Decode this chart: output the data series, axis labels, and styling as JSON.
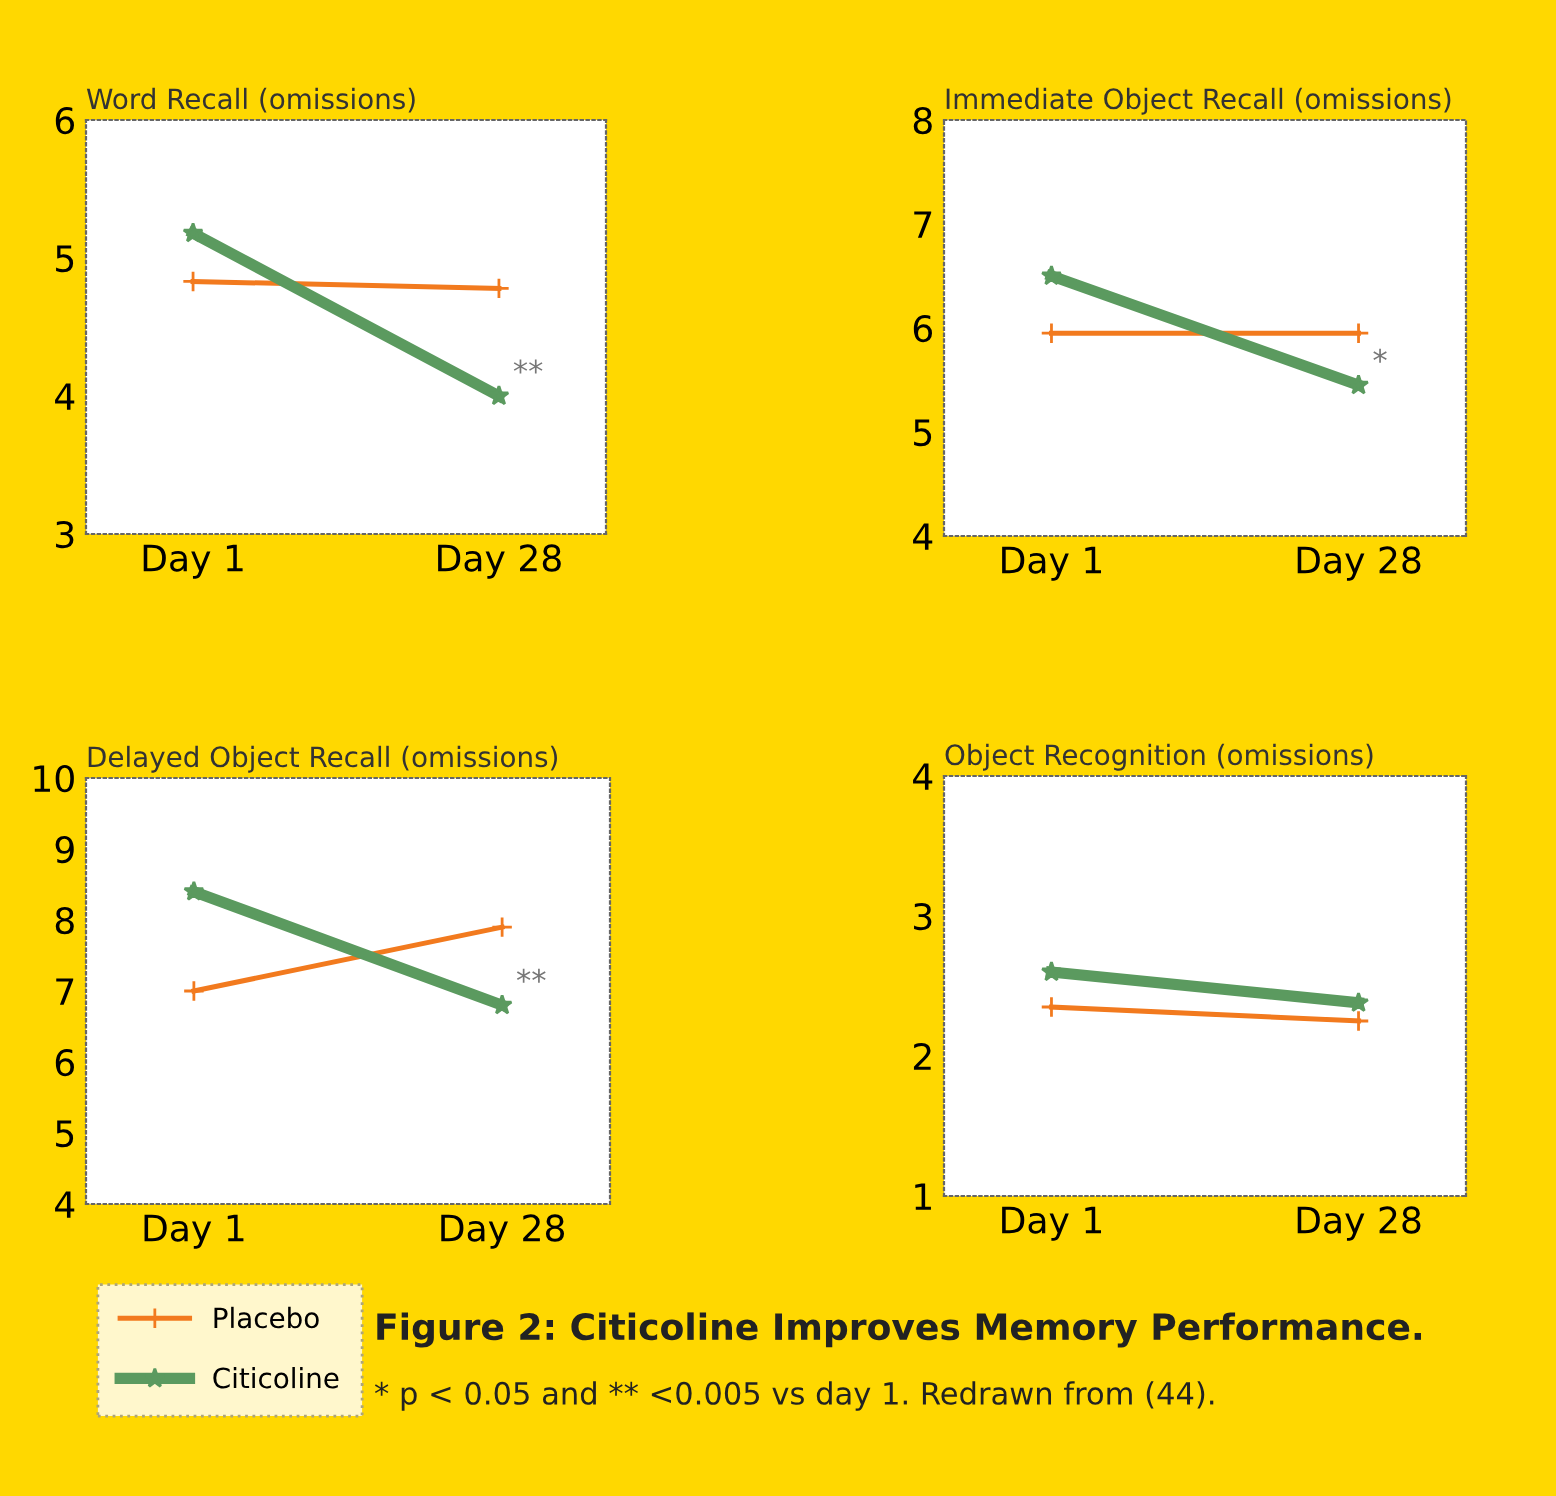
{
  "chart_data": [
    {
      "type": "line",
      "title": "Word Recall (omissions)",
      "categories": [
        "Day 1",
        "Day 28"
      ],
      "ylim": [
        3,
        6
      ],
      "yticks": [
        3,
        4,
        5,
        6
      ],
      "grid": false,
      "legend": false,
      "series": [
        {
          "color": "#f27a1e",
          "values": [
            4.83,
            4.78
          ],
          "marker": "cross"
        },
        {
          "color": "#5b9a5f",
          "values": [
            5.18,
            4.0
          ],
          "marker": "star"
        }
      ],
      "annotations": [
        {
          "text": "**",
          "x": "Day 28",
          "y": 4.0
        }
      ]
    },
    {
      "type": "line",
      "title": "Immediate Object Recall (omissions)",
      "categories": [
        "Day 1",
        "Day 28"
      ],
      "ylim": [
        4,
        8
      ],
      "yticks": [
        4,
        5,
        6,
        7,
        8
      ],
      "grid": false,
      "legend": false,
      "series": [
        {
          "color": "#f27a1e",
          "values": [
            5.95,
            5.95
          ],
          "marker": "cross"
        },
        {
          "color": "#5b9a5f",
          "values": [
            6.5,
            5.45
          ],
          "marker": "star"
        }
      ],
      "annotations": [
        {
          "text": "*",
          "x": "Day 28",
          "y": 5.45
        }
      ]
    },
    {
      "type": "line",
      "title": "Delayed Object Recall (omissions)",
      "categories": [
        "Day 1",
        "Day 28"
      ],
      "ylim": [
        4,
        10
      ],
      "yticks": [
        4,
        5,
        6,
        7,
        8,
        9,
        10
      ],
      "grid": false,
      "legend": "bottom left",
      "series": [
        {
          "name": "Placebo",
          "color": "#f27a1e",
          "values": [
            7.0,
            7.9
          ],
          "marker": "cross"
        },
        {
          "name": "Citicoline",
          "color": "#5b9a5f",
          "values": [
            8.4,
            6.8
          ],
          "marker": "star"
        }
      ],
      "annotations": [
        {
          "text": "**",
          "x": "Day 28",
          "y": 6.8
        }
      ]
    },
    {
      "type": "line",
      "title": "Object Recognition (omissions)",
      "categories": [
        "Day 1",
        "Day 28"
      ],
      "ylim": [
        1,
        4
      ],
      "yticks": [
        1,
        2,
        3,
        4
      ],
      "grid": false,
      "legend": false,
      "series": [
        {
          "color": "#f27a1e",
          "values": [
            2.35,
            2.25
          ],
          "marker": "cross"
        },
        {
          "color": "#5b9a5f",
          "values": [
            2.6,
            2.38
          ],
          "marker": "star"
        }
      ],
      "annotations": [
        "Figure 2: Citicoline Improves Memory Performance.",
        "* p < 0.05 and ** <0.005 vs day 1. Redrawn from (44)."
      ]
    }
  ]
}
